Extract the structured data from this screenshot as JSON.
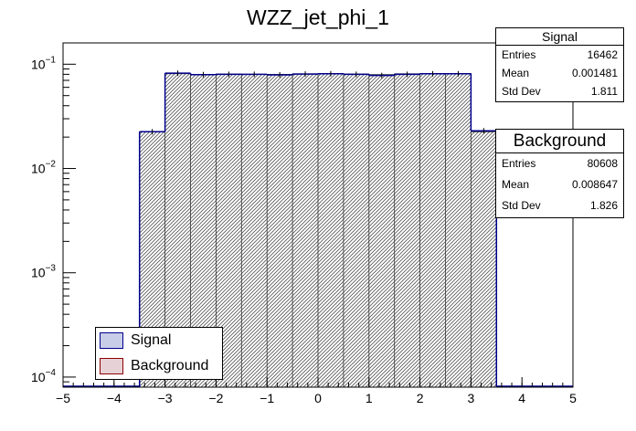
{
  "chart_data": {
    "type": "histogram",
    "title": "WZZ_jet_phi_1",
    "xlabel": "",
    "ylabel": "",
    "xlim": [
      -5,
      5
    ],
    "ylim": [
      8e-05,
      0.16
    ],
    "yscale": "log",
    "xticks": [
      "−5",
      "−4",
      "−3",
      "−2",
      "−1",
      "0",
      "1",
      "2",
      "3",
      "4",
      "5"
    ],
    "yticks": [
      {
        "value": 0.1,
        "base": "10",
        "exp": "−1"
      },
      {
        "value": 0.01,
        "base": "10",
        "exp": "−2"
      },
      {
        "value": 0.001,
        "base": "10",
        "exp": "−3"
      },
      {
        "value": 0.0001,
        "base": "10",
        "exp": "−4"
      }
    ],
    "bin_edges": [
      -5,
      -4.5,
      -4,
      -3.5,
      -3,
      -2.5,
      -2,
      -1.5,
      -1,
      -0.5,
      0,
      0.5,
      1,
      1.5,
      2,
      2.5,
      3,
      3.5,
      4,
      4.5,
      5
    ],
    "series": [
      {
        "name": "Signal",
        "color": "#00008b",
        "fill": "#c8cde8",
        "values": [
          0,
          0,
          0,
          0.0225,
          0.082,
          0.0795,
          0.08,
          0.08,
          0.079,
          0.0805,
          0.081,
          0.08,
          0.078,
          0.08,
          0.081,
          0.081,
          0.023,
          0,
          0,
          0
        ]
      },
      {
        "name": "Background",
        "color": "#8b0000",
        "fill": "#e6d2d6",
        "values": [
          0,
          0,
          0,
          0.0225,
          0.081,
          0.08,
          0.0805,
          0.08,
          0.08,
          0.081,
          0.0815,
          0.0805,
          0.0795,
          0.081,
          0.0815,
          0.0815,
          0.0225,
          0,
          0,
          0
        ]
      }
    ],
    "stats": [
      {
        "id": "signal",
        "title": "Signal",
        "rows": [
          {
            "label": "Entries",
            "value": "16462"
          },
          {
            "label": "Mean",
            "value": "0.001481"
          },
          {
            "label": "Std Dev",
            "value": "1.811"
          }
        ]
      },
      {
        "id": "bkg",
        "title": "Background",
        "rows": [
          {
            "label": "Entries",
            "value": "80608"
          },
          {
            "label": "Mean",
            "value": "0.008647"
          },
          {
            "label": "Std Dev",
            "value": "1.826"
          }
        ]
      }
    ],
    "legend": {
      "position": "bottom-left",
      "entries": [
        {
          "label": "Signal",
          "fill": "#c8cde8",
          "border": "#00008b"
        },
        {
          "label": "Background",
          "fill": "#e6d2d6",
          "border": "#8b0000"
        }
      ]
    }
  }
}
